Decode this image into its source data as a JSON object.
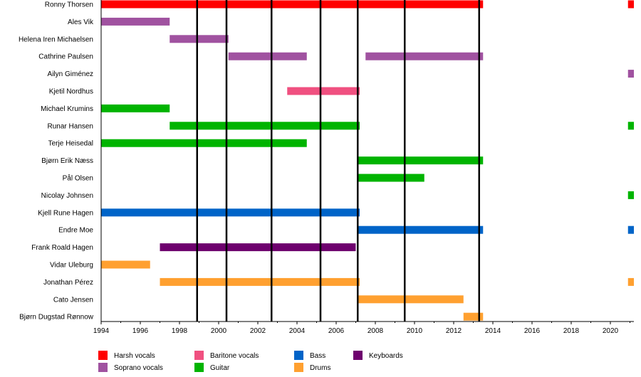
{
  "chart_data": {
    "type": "timeline",
    "title": "",
    "x_range": [
      1994,
      2021.2
    ],
    "x_ticks": [
      "1994",
      "1996",
      "1998",
      "2000",
      "2002",
      "2004",
      "2006",
      "2008",
      "2010",
      "2012",
      "2014",
      "2016",
      "2018",
      "2020"
    ],
    "roles": [
      {
        "key": "harsh",
        "label": "Harsh vocals",
        "color": "#ff0000"
      },
      {
        "key": "soprano",
        "label": "Soprano vocals",
        "color": "#a052a0"
      },
      {
        "key": "baritone",
        "label": "Baritone vocals",
        "color": "#f05080"
      },
      {
        "key": "guitar",
        "label": "Guitar",
        "color": "#00b400"
      },
      {
        "key": "bass",
        "label": "Bass",
        "color": "#0064c8"
      },
      {
        "key": "drums",
        "label": "Drums",
        "color": "#ffa030"
      },
      {
        "key": "keyboards",
        "label": "Keyboards",
        "color": "#6e006e"
      }
    ],
    "members": [
      {
        "name": "Ronny Thorsen",
        "bars": [
          {
            "role": "harsh",
            "start": 1994,
            "end": 2013.5
          },
          {
            "role": "harsh",
            "start": 2020.9,
            "end": 2021.2
          }
        ]
      },
      {
        "name": "Ales Vik",
        "bars": [
          {
            "role": "soprano",
            "start": 1994,
            "end": 1997.5
          }
        ]
      },
      {
        "name": "Helena Iren Michaelsen",
        "bars": [
          {
            "role": "soprano",
            "start": 1997.5,
            "end": 2000.5
          }
        ]
      },
      {
        "name": "Cathrine Paulsen",
        "bars": [
          {
            "role": "soprano",
            "start": 2000.5,
            "end": 2004.5
          },
          {
            "role": "soprano",
            "start": 2007.5,
            "end": 2013.5
          }
        ]
      },
      {
        "name": "Ailyn Giménez",
        "bars": [
          {
            "role": "soprano",
            "start": 2020.9,
            "end": 2021.2
          }
        ]
      },
      {
        "name": "Kjetil Nordhus",
        "bars": [
          {
            "role": "baritone",
            "start": 2003.5,
            "end": 2007.2
          }
        ]
      },
      {
        "name": "Michael Krumins",
        "bars": [
          {
            "role": "guitar",
            "start": 1994,
            "end": 1997.5
          }
        ]
      },
      {
        "name": "Runar Hansen",
        "bars": [
          {
            "role": "guitar",
            "start": 1997.5,
            "end": 2007.2
          },
          {
            "role": "guitar",
            "start": 2020.9,
            "end": 2021.2
          }
        ]
      },
      {
        "name": "Terje Heisedal",
        "bars": [
          {
            "role": "guitar",
            "start": 1994,
            "end": 2004.5
          }
        ]
      },
      {
        "name": "Bjørn Erik Næss",
        "bars": [
          {
            "role": "guitar",
            "start": 2007.1,
            "end": 2013.5
          }
        ]
      },
      {
        "name": "Pål Olsen",
        "bars": [
          {
            "role": "guitar",
            "start": 2007.1,
            "end": 2010.5
          }
        ]
      },
      {
        "name": "Nicolay Johnsen",
        "bars": [
          {
            "role": "guitar",
            "start": 2020.9,
            "end": 2021.2
          }
        ]
      },
      {
        "name": "Kjell Rune Hagen",
        "bars": [
          {
            "role": "bass",
            "start": 1994,
            "end": 2007.2
          }
        ]
      },
      {
        "name": "Endre Moe",
        "bars": [
          {
            "role": "bass",
            "start": 2007.1,
            "end": 2013.5
          },
          {
            "role": "bass",
            "start": 2020.9,
            "end": 2021.2
          }
        ]
      },
      {
        "name": "Frank Roald Hagen",
        "bars": [
          {
            "role": "keyboards",
            "start": 1997,
            "end": 2007
          }
        ]
      },
      {
        "name": "Vidar Uleburg",
        "bars": [
          {
            "role": "drums",
            "start": 1994,
            "end": 1996.5
          }
        ]
      },
      {
        "name": "Jonathan Pérez",
        "bars": [
          {
            "role": "drums",
            "start": 1997,
            "end": 2007.2
          },
          {
            "role": "drums",
            "start": 2020.9,
            "end": 2021.2
          }
        ]
      },
      {
        "name": "Cato Jensen",
        "bars": [
          {
            "role": "drums",
            "start": 2007.1,
            "end": 2012.5
          }
        ]
      },
      {
        "name": "Bjørn Dugstad Rønnow",
        "bars": [
          {
            "role": "drums",
            "start": 2012.5,
            "end": 2013.5
          }
        ]
      }
    ],
    "album_lines": [
      1998.9,
      2000.4,
      2002.7,
      2005.2,
      2007.1,
      2009.5,
      2013.3
    ],
    "legend_order": [
      "harsh",
      "baritone",
      "bass",
      "keyboards",
      "soprano",
      "guitar",
      "drums"
    ]
  }
}
